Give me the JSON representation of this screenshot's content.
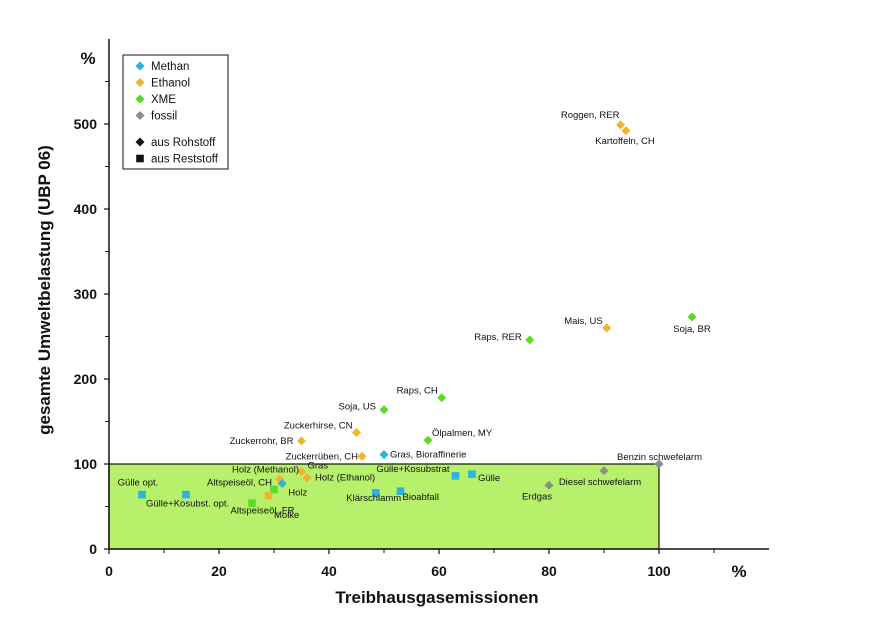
{
  "chart_data": {
    "type": "scatter",
    "title": "",
    "xlabel": "Treibhausgasemissionen",
    "ylabel": "gesamte Umweltbelastung (UBP 06)",
    "x_unit": "%",
    "y_unit": "%",
    "xlim": [
      0,
      120
    ],
    "ylim": [
      0,
      600
    ],
    "x_ticks": [
      0,
      20,
      40,
      60,
      80,
      100
    ],
    "y_ticks": [
      0,
      100,
      200,
      300,
      400,
      500
    ],
    "grid": false,
    "legend_position": "top-left",
    "highlight_region": {
      "x": [
        0,
        100
      ],
      "y": [
        0,
        100
      ],
      "color": "#b7f06a"
    },
    "colors": {
      "Methan": "#2bb4dc",
      "Ethanol": "#f2b22e",
      "XME": "#55dd2a",
      "fossil": "#8c8c8c"
    },
    "legend": {
      "series": [
        "Methan",
        "Ethanol",
        "XME",
        "fossil"
      ],
      "markers": [
        {
          "shape": "diamond",
          "label": "aus Rohstoff"
        },
        {
          "shape": "square",
          "label": "aus Reststoff"
        }
      ]
    },
    "points": [
      {
        "label": "Roggen, RER",
        "series": "Ethanol",
        "shape": "diamond",
        "x": 93,
        "y": 499
      },
      {
        "label": "Kartoffeln, CH",
        "series": "Ethanol",
        "shape": "diamond",
        "x": 94,
        "y": 492
      },
      {
        "label": "Mais, US",
        "series": "Ethanol",
        "shape": "diamond",
        "x": 90.5,
        "y": 260
      },
      {
        "label": "Soja, BR",
        "series": "XME",
        "shape": "diamond",
        "x": 106,
        "y": 273
      },
      {
        "label": "Raps, RER",
        "series": "XME",
        "shape": "diamond",
        "x": 76.5,
        "y": 246
      },
      {
        "label": "Raps, CH",
        "series": "XME",
        "shape": "diamond",
        "x": 60.5,
        "y": 178
      },
      {
        "label": "Soja, US",
        "series": "XME",
        "shape": "diamond",
        "x": 50,
        "y": 164
      },
      {
        "label": "Ölpalmen, MY",
        "series": "XME",
        "shape": "diamond",
        "x": 58,
        "y": 128
      },
      {
        "label": "Zuckerhirse, CN",
        "series": "Ethanol",
        "shape": "diamond",
        "x": 45,
        "y": 137
      },
      {
        "label": "Zuckerrohr, BR",
        "series": "Ethanol",
        "shape": "diamond",
        "x": 35,
        "y": 127
      },
      {
        "label": "Zuckerrüben, CH",
        "series": "Ethanol",
        "shape": "diamond",
        "x": 46,
        "y": 109
      },
      {
        "label": "Gras, Bioraffinerie",
        "series": "Methan",
        "shape": "diamond",
        "x": 50,
        "y": 111
      },
      {
        "label": "Benzin schwefelarm",
        "series": "fossil",
        "shape": "diamond",
        "x": 100,
        "y": 100
      },
      {
        "label": "Diesel schwefelarm",
        "series": "fossil",
        "shape": "diamond",
        "x": 90,
        "y": 92
      },
      {
        "label": "Erdgas",
        "series": "fossil",
        "shape": "diamond",
        "x": 80,
        "y": 75
      },
      {
        "label": "Holz (Methanol)",
        "series": "Ethanol",
        "shape": "diamond",
        "x": 31,
        "y": 82
      },
      {
        "label": "Gras",
        "series": "Ethanol",
        "shape": "diamond",
        "x": 35,
        "y": 91
      },
      {
        "label": "Holz (Ethanol)",
        "series": "Ethanol",
        "shape": "diamond",
        "x": 36,
        "y": 84
      },
      {
        "label": "Holz",
        "series": "Methan",
        "shape": "diamond",
        "x": 31.5,
        "y": 77
      },
      {
        "label": "Gülle+Kosubstrat",
        "series": "Methan",
        "shape": "square",
        "x": 63,
        "y": 86
      },
      {
        "label": "Gülle",
        "series": "Methan",
        "shape": "square",
        "x": 66,
        "y": 88
      },
      {
        "label": "Klärschlamm",
        "series": "Methan",
        "shape": "square",
        "x": 48.5,
        "y": 66
      },
      {
        "label": "Bioabfall",
        "series": "Methan",
        "shape": "square",
        "x": 53,
        "y": 68
      },
      {
        "label": "Gülle opt.",
        "series": "Methan",
        "shape": "square",
        "x": 6,
        "y": 64
      },
      {
        "label": "Gülle+Kosubst. opt.",
        "series": "Methan",
        "shape": "square",
        "x": 14,
        "y": 64
      },
      {
        "label": "Altspeiseöl, CH",
        "series": "XME",
        "shape": "square",
        "x": 30,
        "y": 70
      },
      {
        "label": "Altspeiseöl, FR",
        "series": "Ethanol",
        "shape": "square",
        "x": 29,
        "y": 63
      },
      {
        "label": "Molke",
        "series": "XME",
        "shape": "square",
        "x": 26,
        "y": 54
      }
    ]
  }
}
